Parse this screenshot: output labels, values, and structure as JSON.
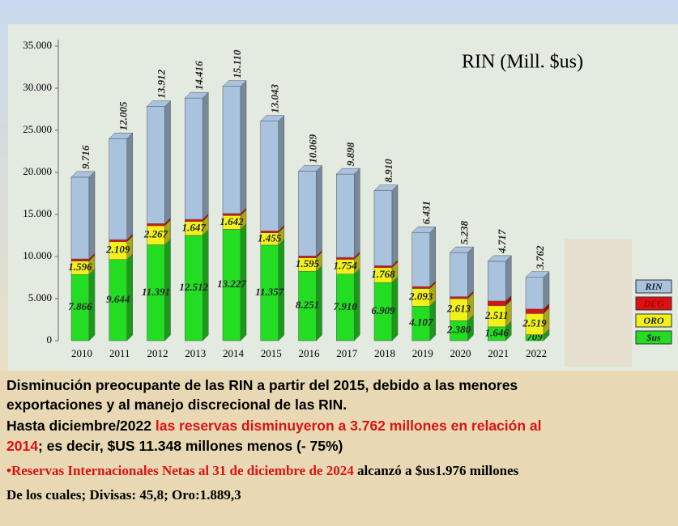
{
  "chart_data": {
    "type": "stacked_bar_3d",
    "title": "RIN (Mill. $us)",
    "categories": [
      "2010",
      "2011",
      "2012",
      "2013",
      "2014",
      "2015",
      "2016",
      "2017",
      "2018",
      "2019",
      "2020",
      "2021",
      "2022"
    ],
    "series": [
      {
        "name": "$us",
        "color": "#22dd22",
        "values": [
          7866,
          9644,
          11391,
          12512,
          13227,
          11357,
          8251,
          7910,
          6909,
          4107,
          2380,
          1646,
          709
        ],
        "value_labels": [
          "7.866",
          "9.644",
          "11.391",
          "12.512",
          "13.227",
          "11.357",
          "8.251",
          "7.910",
          "6.909",
          "4.107",
          "2.380",
          "1.646",
          "709"
        ]
      },
      {
        "name": "ORO",
        "color": "#f2f21a",
        "values": [
          1596,
          2109,
          2267,
          1647,
          1642,
          1455,
          1595,
          1754,
          1768,
          2093,
          2613,
          2511,
          2519
        ],
        "value_labels": [
          "1.596",
          "2.109",
          "2.267",
          "1.647",
          "1.642",
          "1.455",
          "1.595",
          "1.754",
          "1.768",
          "2.093",
          "2.613",
          "2.511",
          "2.519"
        ]
      },
      {
        "name": "DEG",
        "color": "#dd1111",
        "values": [
          254,
          252,
          254,
          257,
          241,
          231,
          223,
          234,
          233,
          231,
          239,
          558,
          534
        ]
      },
      {
        "name": "RIN",
        "color": "#a9c2de",
        "values": [
          9716,
          12005,
          13912,
          14416,
          15110,
          13043,
          10069,
          9898,
          8910,
          6431,
          5238,
          4717,
          3762
        ],
        "value_labels": [
          "9.716",
          "12.005",
          "13.912",
          "14.416",
          "15.110",
          "13.043",
          "10.069",
          "9.898",
          "8.910",
          "6.431",
          "5.238",
          "4.717",
          "3.762"
        ]
      }
    ],
    "ylim": [
      0,
      35000
    ],
    "yticks": [
      0,
      {
        "value": 5000,
        "label": "5.000"
      },
      {
        "value": 10000,
        "label": "10.000"
      },
      {
        "value": 15000,
        "label": "15.000"
      },
      {
        "value": 20000,
        "label": "20.000"
      },
      {
        "value": 25000,
        "label": "25.000"
      },
      {
        "value": 30000,
        "label": "30.000"
      },
      {
        "value": 35000,
        "label": "35.000"
      }
    ]
  },
  "notes": {
    "lines": [
      [
        {
          "text": "Disminución preocupante de las RIN a partir del 2015, debido a las menores",
          "color": "#000000"
        }
      ],
      [
        {
          "text": "exportaciones y al manejo discrecional de las RIN.",
          "color": "#000000"
        }
      ],
      [
        {
          "text": "Hasta diciembre/2022 ",
          "color": "#000000"
        },
        {
          "text": "las reservas disminuyeron a 3.762 millones en relación al",
          "color": "#dd1111"
        }
      ],
      [
        {
          "text": "2014",
          "color": "#dd1111"
        },
        {
          "text": "; es decir, $US 11.348 millones menos (- 75%)",
          "color": "#000000"
        }
      ],
      [
        {
          "text": "•Reservas Internacionales Netas al 31 de diciembre de 2024",
          "color": "#dd1111"
        },
        {
          "text": " alcanzó a $us1.976 millones",
          "color": "#000000"
        }
      ],
      [
        {
          "text": "De los cuales; Divisas: 45,8; Oro:1.889,3",
          "color": "#000000"
        }
      ]
    ]
  }
}
